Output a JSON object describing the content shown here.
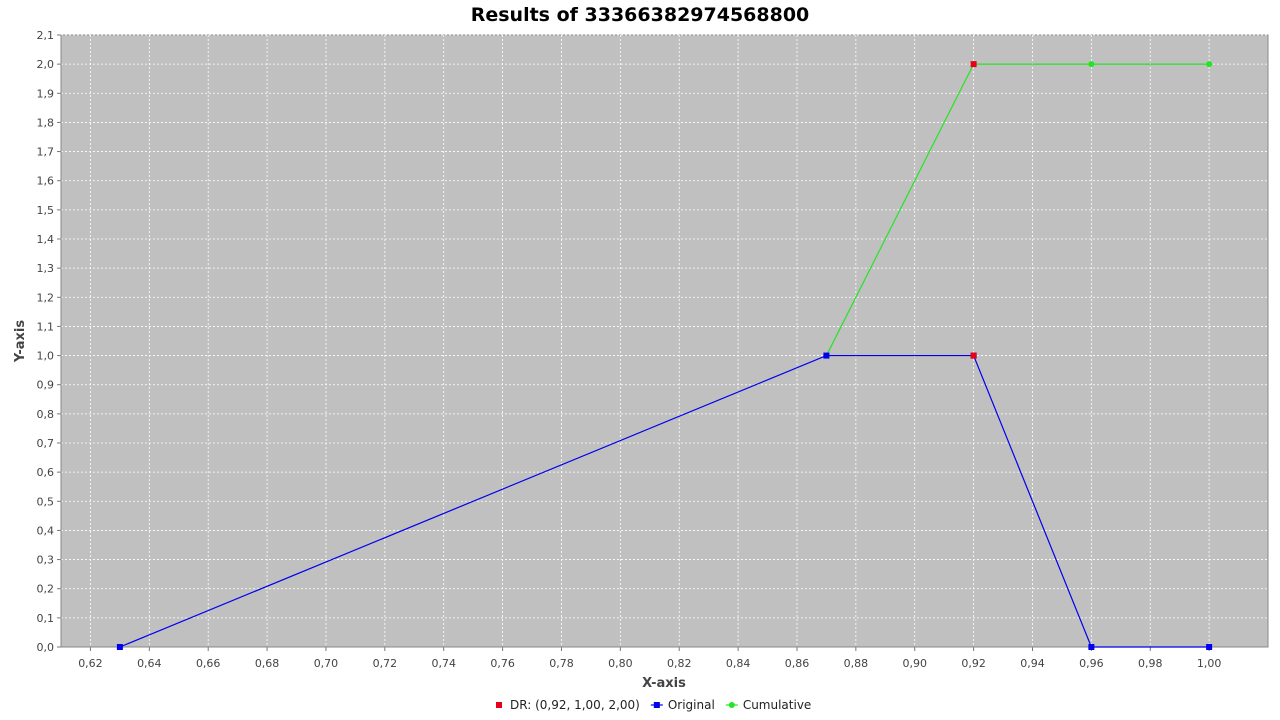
{
  "chart_data": {
    "type": "line",
    "title": "Results of 33366382974568800",
    "xlabel": "X-axis",
    "ylabel": "Y-axis",
    "xlim": [
      0.61,
      1.02
    ],
    "ylim": [
      0.0,
      2.1
    ],
    "x_ticks": [
      "0,62",
      "0,64",
      "0,66",
      "0,68",
      "0,70",
      "0,72",
      "0,74",
      "0,76",
      "0,78",
      "0,80",
      "0,82",
      "0,84",
      "0,86",
      "0,88",
      "0,90",
      "0,92",
      "0,94",
      "0,96",
      "0,98",
      "1,00"
    ],
    "y_ticks": [
      "0,0",
      "0,1",
      "0,2",
      "0,3",
      "0,4",
      "0,5",
      "0,6",
      "0,7",
      "0,8",
      "0,9",
      "1,0",
      "1,1",
      "1,2",
      "1,3",
      "1,4",
      "1,5",
      "1,6",
      "1,7",
      "1,8",
      "1,9",
      "2,0",
      "2,1"
    ],
    "grid": true,
    "legend_position": "bottom",
    "series": [
      {
        "name": "DR: (0,92, 1,00, 2,00)",
        "color": "#e8001a",
        "marker": "square",
        "line": false,
        "points": [
          {
            "x": 0.92,
            "y": 1.0
          },
          {
            "x": 0.92,
            "y": 2.0
          }
        ]
      },
      {
        "name": "Original",
        "color": "#0000ee",
        "marker": "square",
        "line": true,
        "points": [
          {
            "x": 0.63,
            "y": 0.0
          },
          {
            "x": 0.87,
            "y": 1.0
          },
          {
            "x": 0.92,
            "y": 1.0
          },
          {
            "x": 0.96,
            "y": 0.0
          },
          {
            "x": 1.0,
            "y": 0.0
          }
        ]
      },
      {
        "name": "Cumulative",
        "color": "#22e622",
        "marker": "circle",
        "line": true,
        "points": [
          {
            "x": 0.87,
            "y": 1.0
          },
          {
            "x": 0.92,
            "y": 2.0
          },
          {
            "x": 0.96,
            "y": 2.0
          },
          {
            "x": 1.0,
            "y": 2.0
          }
        ]
      }
    ]
  }
}
